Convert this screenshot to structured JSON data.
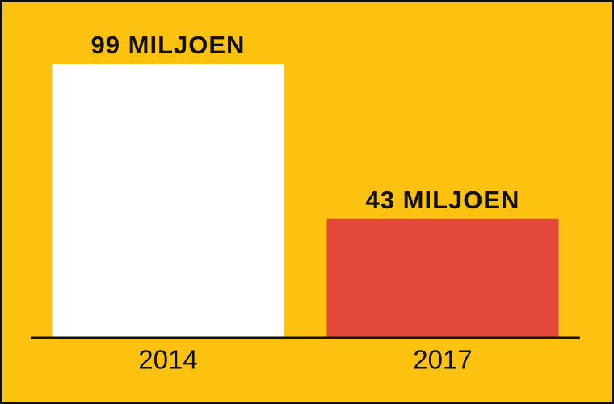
{
  "chart_data": {
    "type": "bar",
    "categories": [
      "2014",
      "2017"
    ],
    "values": [
      99,
      43
    ],
    "value_labels": [
      "99 MILJOEN",
      "43 MILJOEN"
    ],
    "colors": [
      "#ffffff",
      "#e4483a"
    ],
    "background": "#fdc20f"
  }
}
